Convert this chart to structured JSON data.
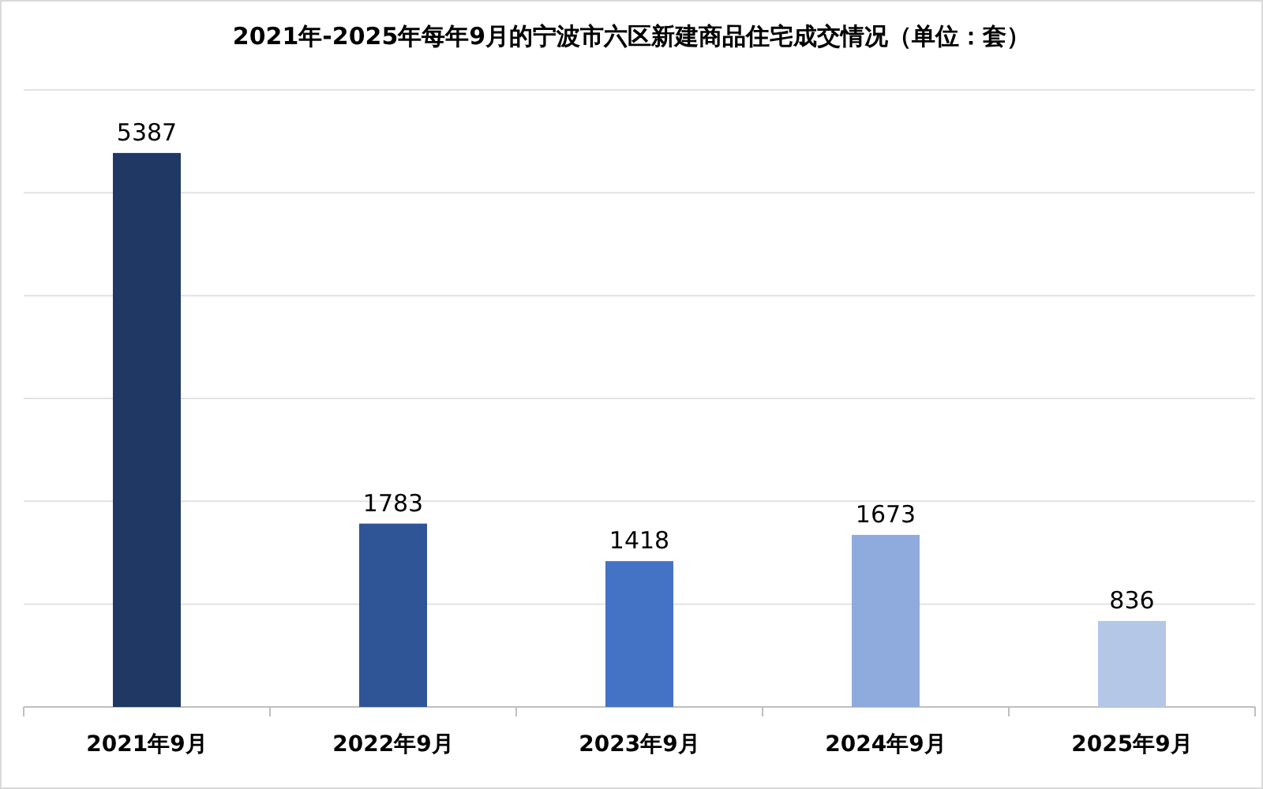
{
  "chart_data": {
    "type": "bar",
    "title": "2021年-2025年每年9月的宁波市六区新建商品住宅成交情况（单位：套）",
    "categories": [
      "2021年9月",
      "2022年9月",
      "2023年9月",
      "2024年9月",
      "2025年9月"
    ],
    "values": [
      5387,
      1783,
      1418,
      1673,
      836
    ],
    "colors": [
      "#1f3864",
      "#2f5597",
      "#4472c4",
      "#8faadc",
      "#b4c7e7"
    ],
    "ylim": [
      0,
      6000
    ],
    "yticks": [
      {
        "value": 0,
        "label": null
      },
      {
        "value": 1000,
        "label": null
      },
      {
        "value": 2000,
        "label": null
      },
      {
        "value": 3000,
        "label": null
      },
      {
        "value": 4000,
        "label": null
      },
      {
        "value": 5000,
        "label": null
      },
      {
        "value": 6000,
        "label": null
      }
    ],
    "grid": "y",
    "data_labels": true,
    "tick_labels": "x"
  }
}
